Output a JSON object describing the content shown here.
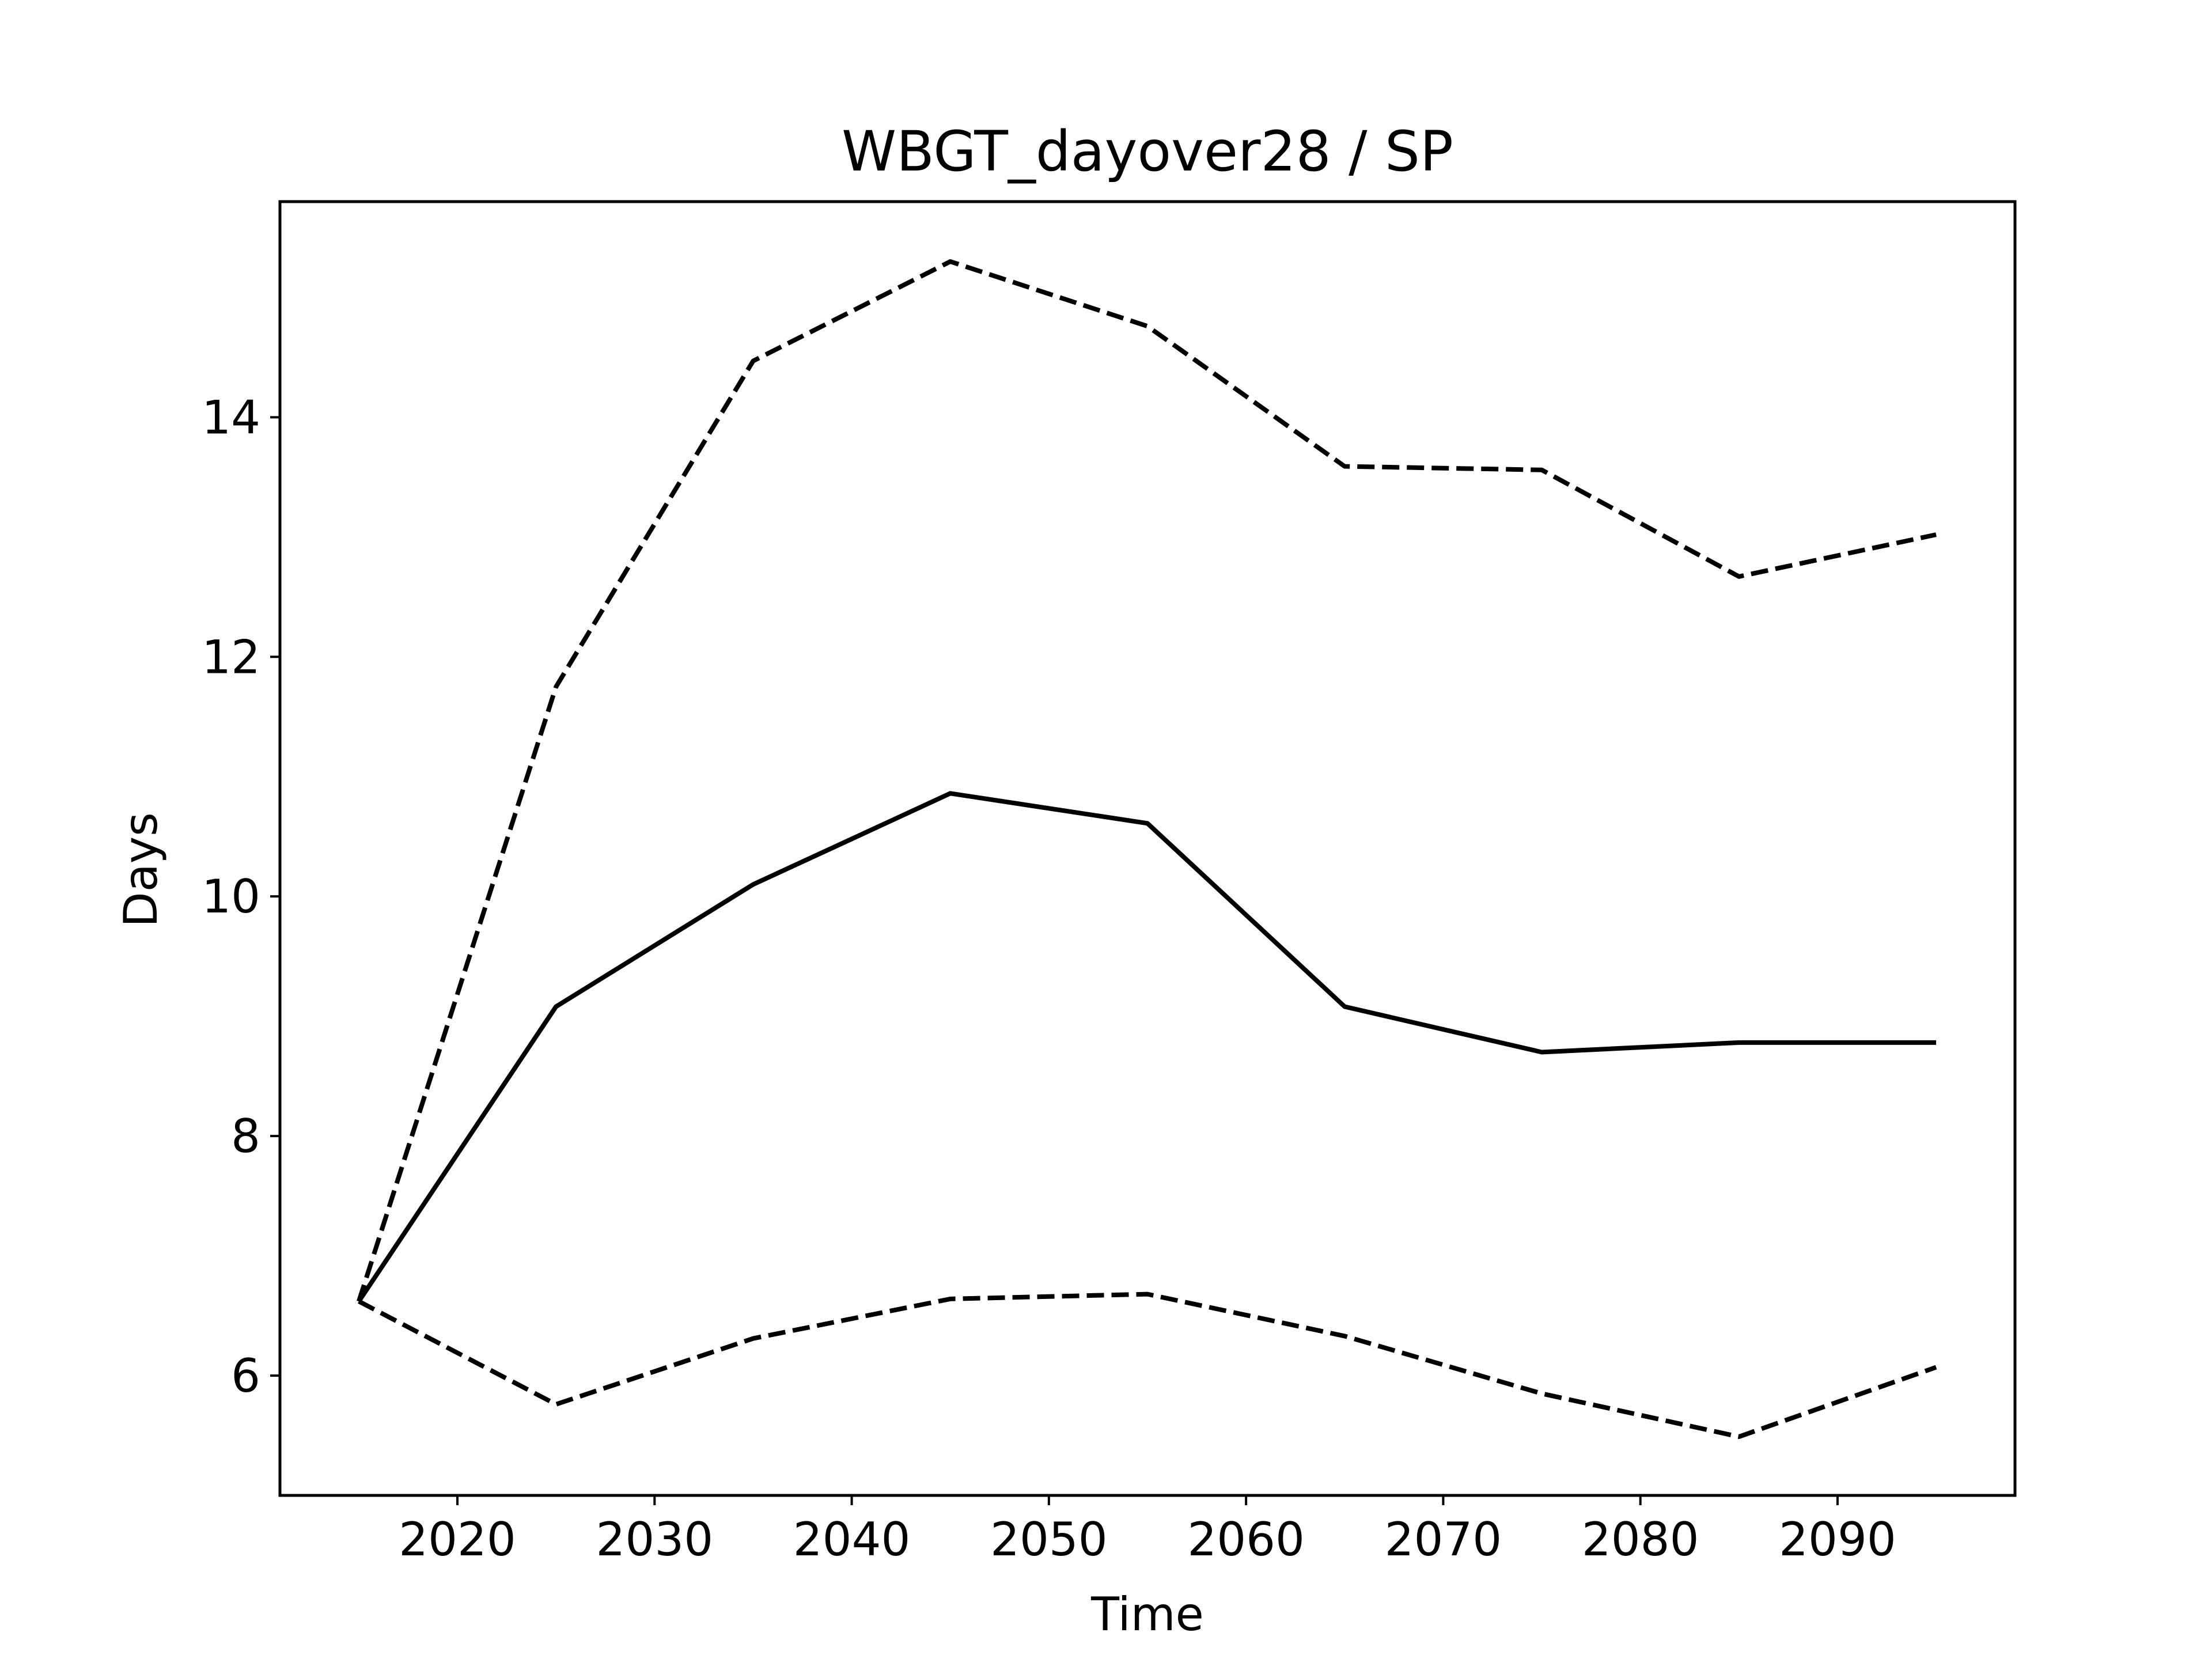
{
  "chart_data": {
    "type": "line",
    "title": "WBGT_dayover28 / SP",
    "xlabel": "Time",
    "ylabel": "Days",
    "xlim": [
      2011,
      2099
    ],
    "ylim": [
      5.0,
      15.8
    ],
    "xticks": [
      2020,
      2030,
      2040,
      2050,
      2060,
      2070,
      2080,
      2090
    ],
    "yticks": [
      6,
      8,
      10,
      12,
      14
    ],
    "grid": false,
    "x": [
      2015,
      2025,
      2035,
      2045,
      2055,
      2065,
      2075,
      2085,
      2095
    ],
    "series": [
      {
        "style": "solid",
        "color": "#000000",
        "values": [
          6.62,
          9.08,
          10.1,
          10.86,
          10.61,
          9.08,
          8.7,
          8.78,
          8.78
        ]
      },
      {
        "style": "dashed",
        "color": "#000000",
        "values": [
          6.62,
          11.75,
          14.47,
          15.3,
          14.76,
          13.59,
          13.56,
          12.67,
          13.02
        ]
      },
      {
        "style": "dashed",
        "color": "#000000",
        "values": [
          6.62,
          5.76,
          6.31,
          6.64,
          6.68,
          6.33,
          5.85,
          5.49,
          6.07
        ]
      }
    ]
  }
}
